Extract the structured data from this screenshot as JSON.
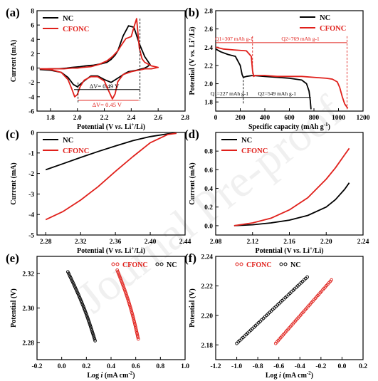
{
  "watermark": "Journal Pre-proof",
  "chart_data": [
    {
      "panel": "(a)",
      "type": "line",
      "xlabel": "Potential (V vs. Li+/Li)",
      "ylabel": "Current (mA)",
      "xlim": [
        1.7,
        2.8
      ],
      "ylim": [
        -6,
        8
      ],
      "xticks": [
        "1.8",
        "2.0",
        "2.2",
        "2.4",
        "2.6",
        "2.8"
      ],
      "yticks": [
        "-6",
        "-4",
        "-2",
        "0",
        "2",
        "4",
        "6",
        "8"
      ],
      "legend": [
        "NC",
        "CFONC"
      ],
      "annotations": [
        "ΔV= 0.49 V",
        "ΔV= 0.45 V"
      ],
      "series": [
        {
          "name": "NC",
          "color": "#000000",
          "x": [
            1.72,
            1.8,
            1.88,
            1.93,
            1.97,
            2.0,
            2.05,
            2.1,
            2.15,
            2.2,
            2.25,
            2.3,
            2.35,
            2.38,
            2.41,
            2.44,
            2.46,
            2.48,
            2.5,
            2.52,
            2.54,
            2.5,
            2.46,
            2.42,
            2.38,
            2.34,
            2.3,
            2.28,
            2.25,
            2.22,
            2.18,
            2.12,
            2.06,
            2.02,
            1.99,
            1.96,
            1.92,
            1.86,
            1.8,
            1.74,
            1.72
          ],
          "y": [
            -0.2,
            -0.3,
            -0.6,
            -1.3,
            -2.3,
            -2.6,
            -1.8,
            -1.1,
            -1.1,
            -1.6,
            -2.0,
            -1.4,
            -0.8,
            -0.5,
            -0.4,
            -0.3,
            -0.2,
            -0.1,
            0.0,
            0.2,
            0.5,
            1.6,
            3.4,
            5.7,
            5.9,
            4.5,
            2.4,
            1.8,
            1.2,
            0.8,
            0.6,
            0.4,
            0.3,
            0.2,
            0.15,
            0.1,
            0.0,
            -0.1,
            -0.1,
            -0.15,
            -0.2
          ]
        },
        {
          "name": "CFONC",
          "color": "#e0201b",
          "x": [
            1.72,
            1.8,
            1.88,
            1.93,
            1.96,
            1.98,
            2.0,
            2.02,
            2.05,
            2.1,
            2.15,
            2.2,
            2.24,
            2.26,
            2.28,
            2.3,
            2.34,
            2.4,
            2.45,
            2.48,
            2.5,
            2.55,
            2.6,
            2.55,
            2.5,
            2.48,
            2.46,
            2.44,
            2.42,
            2.4,
            2.36,
            2.32,
            2.3,
            2.26,
            2.22,
            2.16,
            2.1,
            2.04,
            2.0,
            1.96,
            1.9,
            1.84,
            1.78,
            1.72
          ],
          "y": [
            -0.1,
            -0.2,
            -0.6,
            -1.6,
            -3.0,
            -4.0,
            -3.7,
            -2.6,
            -1.7,
            -1.2,
            -1.2,
            -1.8,
            -3.5,
            -4.3,
            -3.6,
            -1.9,
            -0.9,
            -0.5,
            -0.3,
            -0.2,
            -0.1,
            -0.1,
            0.1,
            0.3,
            0.8,
            1.3,
            2.8,
            6.9,
            5.7,
            4.4,
            4.1,
            3.0,
            2.4,
            1.6,
            1.0,
            0.5,
            0.2,
            0.1,
            0.0,
            0.0,
            -0.1,
            -0.1,
            -0.1,
            -0.1
          ]
        }
      ]
    },
    {
      "panel": "(b)",
      "type": "line",
      "xlabel": "Specific capacity (mAh g-1)",
      "ylabel": "Potential (V vs. Li+/Li)",
      "xlim": [
        0,
        1200
      ],
      "ylim": [
        1.7,
        2.8
      ],
      "xticks": [
        "0",
        "200",
        "400",
        "600",
        "800",
        "1000",
        "1200"
      ],
      "yticks": [
        "1.8",
        "2.0",
        "2.2",
        "2.4",
        "2.6",
        "2.8"
      ],
      "legend": [
        "NC",
        "CFONC"
      ],
      "annotations": [
        "Q1=307 mAh g-1",
        "Q2=769 mAh g-1",
        "Q1=227 mAh g-1",
        "Q2=549 mAh g-1"
      ],
      "series": [
        {
          "name": "NC",
          "color": "#000000",
          "x": [
            0,
            40,
            100,
            160,
            200,
            215,
            225,
            250,
            300,
            400,
            500,
            600,
            700,
            740,
            760,
            770,
            776
          ],
          "y": [
            2.38,
            2.35,
            2.32,
            2.3,
            2.2,
            2.1,
            2.07,
            2.08,
            2.09,
            2.08,
            2.07,
            2.06,
            2.04,
            2.0,
            1.92,
            1.82,
            1.72
          ]
        },
        {
          "name": "CFONC",
          "color": "#e0201b",
          "x": [
            0,
            60,
            150,
            250,
            290,
            300,
            310,
            320,
            400,
            500,
            600,
            700,
            800,
            900,
            950,
            990,
            1010,
            1030,
            1050,
            1076
          ],
          "y": [
            2.4,
            2.38,
            2.37,
            2.36,
            2.3,
            2.14,
            2.08,
            2.09,
            2.09,
            2.08,
            2.08,
            2.08,
            2.07,
            2.06,
            2.05,
            2.02,
            1.96,
            1.86,
            1.78,
            1.73
          ]
        }
      ]
    },
    {
      "panel": "(c)",
      "type": "line",
      "xlabel": "Potential (V vs. Li+/Li)",
      "ylabel": "Current (mA)",
      "xlim": [
        2.27,
        2.44
      ],
      "ylim": [
        -5,
        0
      ],
      "xticks": [
        "2.28",
        "2.32",
        "2.36",
        "2.40",
        "2.44"
      ],
      "yticks": [
        "-5",
        "-4",
        "-3",
        "-2",
        "-1",
        "0"
      ],
      "legend": [
        "NC",
        "CFONC"
      ],
      "series": [
        {
          "name": "NC",
          "color": "#000000",
          "x": [
            2.28,
            2.3,
            2.32,
            2.34,
            2.36,
            2.38,
            2.4,
            2.42,
            2.43
          ],
          "y": [
            -1.82,
            -1.52,
            -1.22,
            -0.93,
            -0.66,
            -0.4,
            -0.2,
            -0.07,
            -0.03
          ]
        },
        {
          "name": "CFONC",
          "color": "#e0201b",
          "x": [
            2.28,
            2.3,
            2.32,
            2.34,
            2.36,
            2.38,
            2.4,
            2.42,
            2.43
          ],
          "y": [
            -4.25,
            -3.85,
            -3.3,
            -2.65,
            -1.9,
            -1.18,
            -0.5,
            -0.1,
            -0.04
          ]
        }
      ]
    },
    {
      "panel": "(d)",
      "type": "line",
      "xlabel": "Potential (V vs. Li+/Li)",
      "ylabel": "Current (mA)",
      "xlim": [
        2.08,
        2.24
      ],
      "ylim": [
        -0.1,
        1.0
      ],
      "xticks": [
        "2.08",
        "2.12",
        "2.16",
        "2.20",
        "2.24"
      ],
      "yticks": [
        "0.0",
        "0.2",
        "0.4",
        "0.6",
        "0.8"
      ],
      "legend": [
        "NC",
        "CFONC"
      ],
      "series": [
        {
          "name": "NC",
          "color": "#000000",
          "x": [
            2.1,
            2.12,
            2.14,
            2.16,
            2.18,
            2.2,
            2.21,
            2.22,
            2.225
          ],
          "y": [
            0.0,
            0.01,
            0.03,
            0.06,
            0.11,
            0.2,
            0.28,
            0.39,
            0.46
          ]
        },
        {
          "name": "CFONC",
          "color": "#e0201b",
          "x": [
            2.1,
            2.12,
            2.14,
            2.16,
            2.18,
            2.2,
            2.21,
            2.22,
            2.225
          ],
          "y": [
            0.0,
            0.03,
            0.08,
            0.17,
            0.3,
            0.5,
            0.62,
            0.76,
            0.83
          ]
        }
      ]
    },
    {
      "panel": "(e)",
      "type": "scatter",
      "xlabel": "Log i (mA cm-2)",
      "ylabel": "Potential (V)",
      "xlim": [
        -0.2,
        1.0
      ],
      "ylim": [
        2.27,
        2.33
      ],
      "xticks": [
        "-0.2",
        "0.0",
        "0.2",
        "0.4",
        "0.6",
        "0.8",
        "1.0"
      ],
      "yticks": [
        "2.28",
        "2.30",
        "2.32"
      ],
      "legend": [
        "CFONC",
        "NC"
      ],
      "series": [
        {
          "name": "CFONC",
          "color": "#e0201b",
          "x0": 0.45,
          "y0": 2.322,
          "x1": 0.62,
          "y1": 2.282
        },
        {
          "name": "NC",
          "color": "#000000",
          "x0": 0.05,
          "y0": 2.321,
          "x1": 0.27,
          "y1": 2.281
        }
      ]
    },
    {
      "panel": "(f)",
      "type": "scatter",
      "xlabel": "Log i (mA cm-2)",
      "ylabel": "Potential (V)",
      "xlim": [
        -1.2,
        0.2
      ],
      "ylim": [
        2.17,
        2.24
      ],
      "xticks": [
        "-1.2",
        "-1.0",
        "-0.8",
        "-0.6",
        "-0.4",
        "-0.2",
        "0.0",
        "0.2"
      ],
      "yticks": [
        "2.18",
        "2.20",
        "2.22",
        "2.24"
      ],
      "legend": [
        "CFONC",
        "NC"
      ],
      "series": [
        {
          "name": "CFONC",
          "color": "#e0201b",
          "x0": -0.63,
          "y0": 2.181,
          "x1": -0.1,
          "y1": 2.224
        },
        {
          "name": "NC",
          "color": "#000000",
          "x0": -1.0,
          "y0": 2.181,
          "x1": -0.33,
          "y1": 2.226
        }
      ]
    }
  ]
}
